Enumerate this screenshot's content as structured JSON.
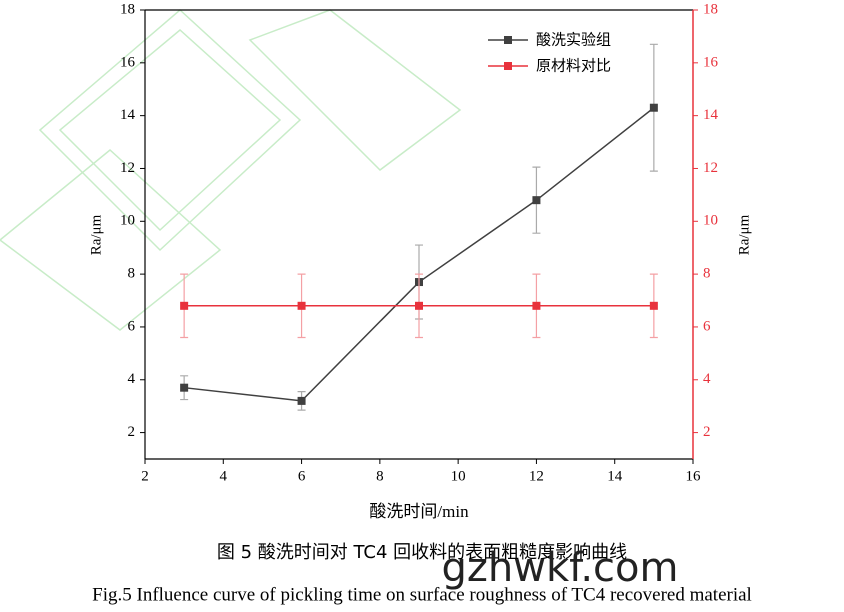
{
  "chart_data": {
    "type": "line",
    "xlabel": "酸洗时间/min",
    "ylabel": "Ra/μm",
    "y2label": "Ra/μm",
    "xlim": [
      2,
      16
    ],
    "xticks": [
      2,
      4,
      6,
      8,
      10,
      12,
      14,
      16
    ],
    "ylim": [
      1,
      18
    ],
    "yticks": [
      2,
      4,
      6,
      8,
      10,
      12,
      14,
      16,
      18
    ],
    "y2lim": [
      1,
      18
    ],
    "y2ticks": [
      2,
      4,
      6,
      8,
      10,
      12,
      14,
      16,
      18
    ],
    "x": [
      3,
      6,
      9,
      12,
      15
    ],
    "legend": "upper right",
    "series": [
      {
        "name": "酸洗实验组",
        "color": "#404040",
        "values": [
          3.7,
          3.2,
          7.7,
          10.8,
          14.3
        ],
        "errors": [
          0.45,
          0.35,
          1.4,
          1.25,
          2.4
        ]
      },
      {
        "name": "原材料对比",
        "color": "#e8323c",
        "axis": "y2",
        "values": [
          6.8,
          6.8,
          6.8,
          6.8,
          6.8
        ],
        "errors": [
          1.2,
          1.2,
          1.2,
          1.2,
          1.2
        ]
      }
    ]
  },
  "caption": {
    "zh": "图 5  酸洗时间对 TC4 回收料的表面粗糙度影响曲线",
    "en": "Fig.5 Influence curve of pickling time on surface roughness of TC4 recovered material"
  },
  "watermark": "gzhwkf.com"
}
